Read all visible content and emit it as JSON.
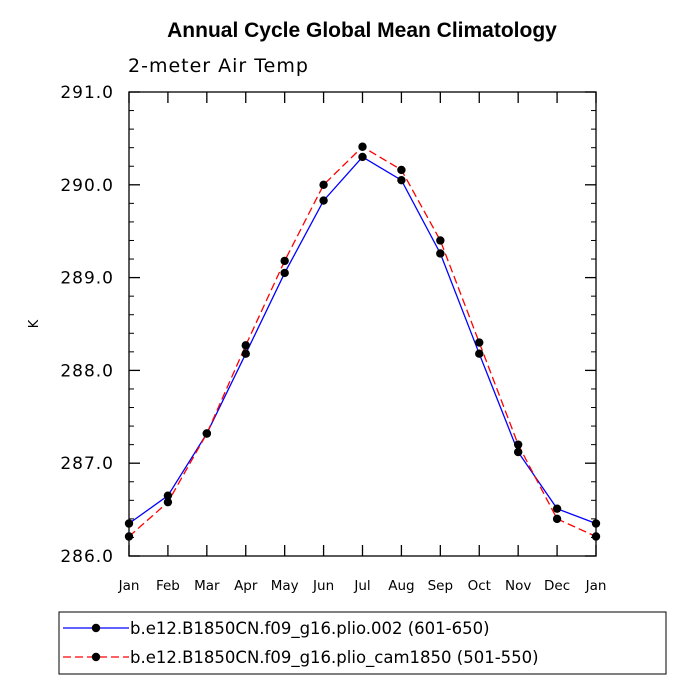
{
  "chart_data": {
    "type": "line",
    "title": "Annual Cycle Global Mean Climatology",
    "subtitle": "2-meter Air Temp",
    "xlabel": "",
    "ylabel": "K",
    "categories": [
      "Jan",
      "Feb",
      "Mar",
      "Apr",
      "May",
      "Jun",
      "Jul",
      "Aug",
      "Sep",
      "Oct",
      "Nov",
      "Dec",
      "Jan"
    ],
    "ylim": [
      286.0,
      291.0
    ],
    "yticks": [
      "286.0",
      "287.0",
      "288.0",
      "289.0",
      "290.0",
      "291.0"
    ],
    "series": [
      {
        "name": "b.e12.B1850CN.f09_g16.plio.002 (601-650)",
        "color": "#0000ff",
        "dash": "solid",
        "values": [
          286.35,
          286.65,
          287.32,
          288.18,
          289.05,
          289.83,
          290.3,
          290.05,
          289.26,
          288.18,
          287.12,
          286.51,
          286.35
        ]
      },
      {
        "name": "b.e12.B1850CN.f09_g16.plio_cam1850 (501-550)",
        "color": "#ff0000",
        "dash": "dashed",
        "values": [
          286.21,
          286.58,
          287.32,
          288.27,
          289.18,
          290.0,
          290.41,
          290.16,
          289.4,
          288.3,
          287.2,
          286.4,
          286.21
        ]
      }
    ]
  }
}
